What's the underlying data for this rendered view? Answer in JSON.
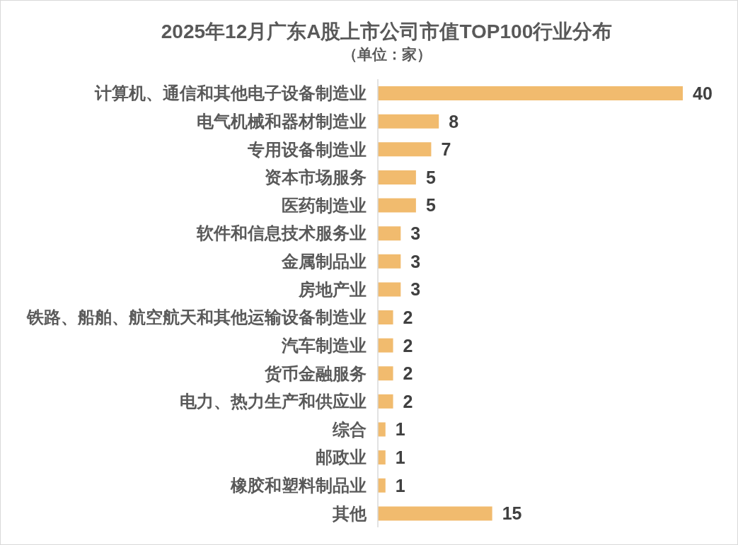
{
  "chart_data": {
    "type": "bar",
    "orientation": "horizontal",
    "title": "2025年12月广东A股上市公司市值TOP100行业分布",
    "subtitle": "（单位：家）",
    "categories": [
      "计算机、通信和其他电子设备制造业",
      "电气机械和器材制造业",
      "专用设备制造业",
      "资本市场服务",
      "医药制造业",
      "软件和信息技术服务业",
      "金属制品业",
      "房地产业",
      "铁路、船舶、航空航天和其他运输设备制造业",
      "汽车制造业",
      "货币金融服务",
      "电力、热力生产和供应业",
      "综合",
      "邮政业",
      "橡胶和塑料制品业",
      "其他"
    ],
    "values": [
      40,
      8,
      7,
      5,
      5,
      3,
      3,
      3,
      2,
      2,
      2,
      2,
      1,
      1,
      1,
      15
    ],
    "color": "#f1bb6e",
    "data_labels": true,
    "tick_labels": "y"
  }
}
